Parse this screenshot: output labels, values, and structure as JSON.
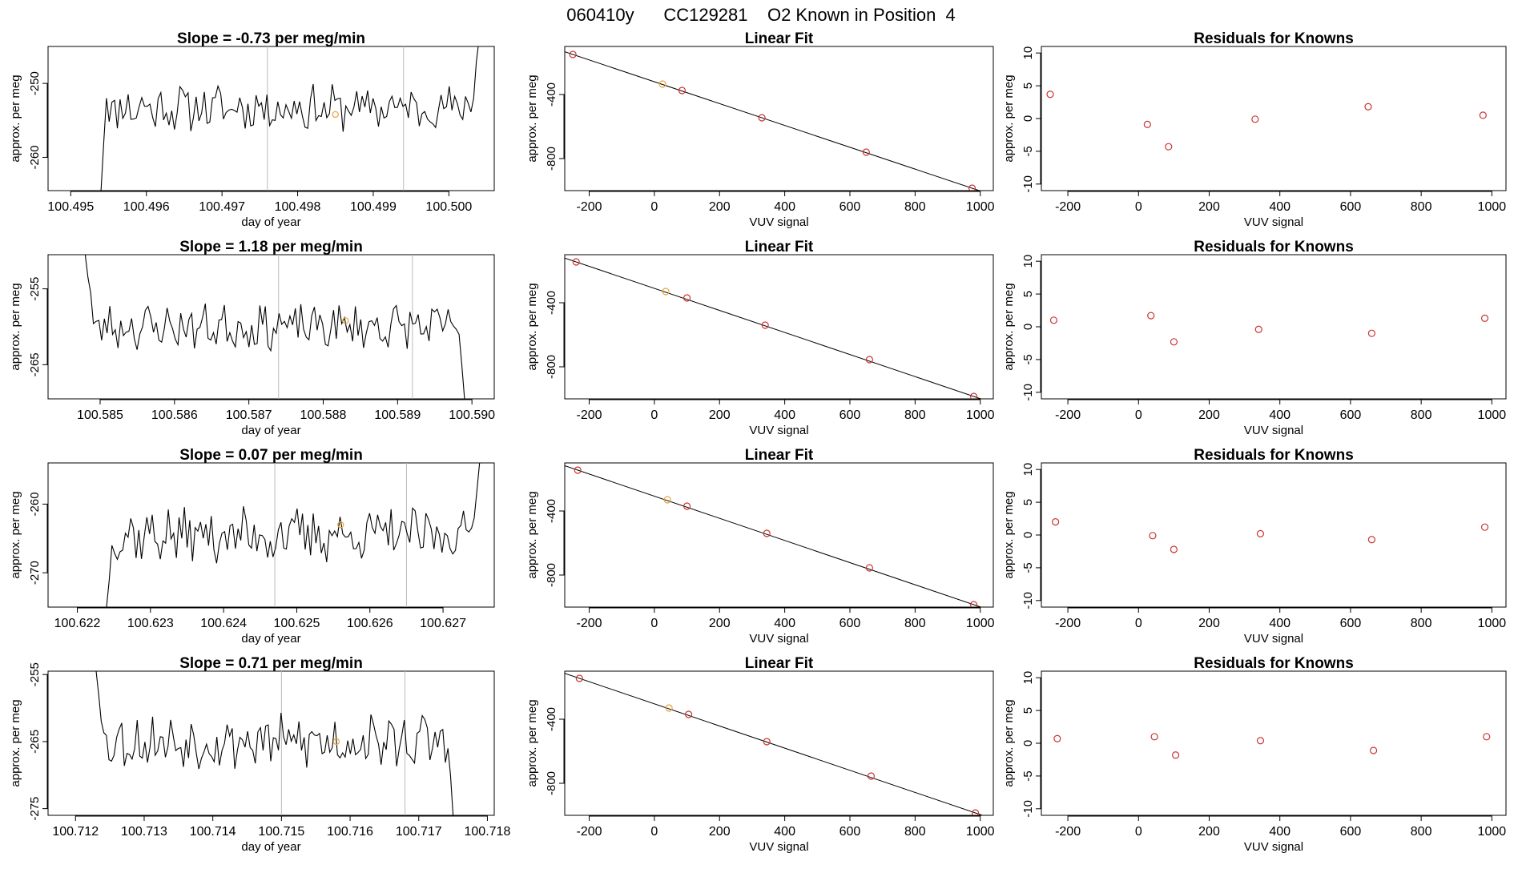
{
  "page_title": "060410y      CC129281    O2 Known in Position  4",
  "colors": {
    "trace": "#000000",
    "orange_point": "#e8a33d",
    "red_point": "#cc3333",
    "vline": "#bbbbbb"
  },
  "chart_data": [
    {
      "type": "line",
      "row": 1,
      "title": "Slope =  -0.73  per meg/min",
      "xlabel": "day of year",
      "ylabel": "approx. per meg",
      "xlim": [
        100.4947,
        100.5006
      ],
      "ylim": [
        -264.5,
        -245
      ],
      "xticks": [
        "100.495",
        "100.496",
        "100.497",
        "100.498",
        "100.499",
        "100.500"
      ],
      "xtick_values": [
        100.495,
        100.496,
        100.497,
        100.498,
        100.499,
        100.5
      ],
      "yticks": [
        "-250",
        "-260"
      ],
      "ytick_values": [
        -250,
        -260
      ],
      "trace_start": 100.4954,
      "trace_end": 100.5004,
      "trace_level": -253.3,
      "trace_amplitude": 2.0,
      "start_values": [
        -264.5,
        -258,
        -252
      ],
      "end_values": [
        -252,
        -247,
        -244
      ],
      "vlines": [
        100.4976,
        100.4994
      ],
      "marker": {
        "x": 100.4985,
        "y": -254.2
      },
      "seed": 11
    },
    {
      "type": "scatter",
      "row": 1,
      "title": "Linear Fit",
      "xlabel": "VUV signal",
      "ylabel": "approx. per meg",
      "xlim": [
        -275,
        1040
      ],
      "ylim": [
        -1000,
        -100
      ],
      "xticks": [
        "-200",
        "0",
        "200",
        "400",
        "600",
        "800",
        "1000"
      ],
      "xtick_values": [
        -200,
        0,
        200,
        400,
        600,
        800,
        1000
      ],
      "yticks": [
        "-400",
        "-800"
      ],
      "ytick_values": [
        -400,
        -800
      ],
      "line": [
        [
          -250,
          -150
        ],
        [
          975,
          -985
        ]
      ],
      "points": [
        {
          "x": -250,
          "y": -150,
          "color": "red"
        },
        {
          "x": 25,
          "y": -335,
          "color": "orange"
        },
        {
          "x": 85,
          "y": -375,
          "color": "red"
        },
        {
          "x": 330,
          "y": -545,
          "color": "red"
        },
        {
          "x": 650,
          "y": -760,
          "color": "red"
        },
        {
          "x": 975,
          "y": -985,
          "color": "red"
        }
      ]
    },
    {
      "type": "scatter",
      "row": 1,
      "title": "Residuals for Knowns",
      "xlabel": "VUV signal",
      "ylabel": "approx. per meg",
      "xlim": [
        -275,
        1040
      ],
      "ylim": [
        -11,
        11
      ],
      "xticks": [
        "-200",
        "0",
        "200",
        "400",
        "600",
        "800",
        "1000"
      ],
      "xtick_values": [
        -200,
        0,
        200,
        400,
        600,
        800,
        1000
      ],
      "yticks": [
        "10",
        "5",
        "0",
        "-5",
        "-10"
      ],
      "ytick_values": [
        10,
        5,
        0,
        -5,
        -10
      ],
      "points": [
        {
          "x": -250,
          "y": 3.7,
          "color": "red"
        },
        {
          "x": 25,
          "y": -0.9,
          "color": "red"
        },
        {
          "x": 85,
          "y": -4.3,
          "color": "red"
        },
        {
          "x": 330,
          "y": -0.1,
          "color": "red"
        },
        {
          "x": 650,
          "y": 1.8,
          "color": "red"
        },
        {
          "x": 975,
          "y": 0.5,
          "color": "red"
        }
      ]
    },
    {
      "type": "line",
      "row": 2,
      "title": "Slope =  1.18  per meg/min",
      "xlabel": "day of year",
      "ylabel": "approx. per meg",
      "xlim": [
        100.5843,
        100.5903
      ],
      "ylim": [
        -269.5,
        -250.5
      ],
      "xticks": [
        "100.585",
        "100.586",
        "100.587",
        "100.588",
        "100.589",
        "100.590"
      ],
      "xtick_values": [
        100.585,
        100.586,
        100.587,
        100.588,
        100.589,
        100.59
      ],
      "yticks": [
        "-255",
        "-265"
      ],
      "ytick_values": [
        -255,
        -265
      ],
      "trace_start": 100.5848,
      "trace_end": 100.5899,
      "trace_level": -260.0,
      "trace_amplitude": 1.9,
      "start_values": [
        -250.5,
        -253.5,
        -255.5
      ],
      "end_values": [
        -261,
        -265,
        -269.5
      ],
      "vlines": [
        100.5874,
        100.5892
      ],
      "marker": {
        "x": 100.5883,
        "y": -259.2
      },
      "seed": 23
    },
    {
      "type": "scatter",
      "row": 2,
      "title": "Linear Fit",
      "xlabel": "VUV signal",
      "ylabel": "approx. per meg",
      "xlim": [
        -275,
        1040
      ],
      "ylim": [
        -1000,
        -100
      ],
      "xticks": [
        "-200",
        "0",
        "200",
        "400",
        "600",
        "800",
        "1000"
      ],
      "xtick_values": [
        -200,
        0,
        200,
        400,
        600,
        800,
        1000
      ],
      "yticks": [
        "-400",
        "-800"
      ],
      "ytick_values": [
        -400,
        -800
      ],
      "line": [
        [
          -240,
          -145
        ],
        [
          980,
          -985
        ]
      ],
      "points": [
        {
          "x": -240,
          "y": -145,
          "color": "red"
        },
        {
          "x": 35,
          "y": -330,
          "color": "orange"
        },
        {
          "x": 100,
          "y": -370,
          "color": "red"
        },
        {
          "x": 340,
          "y": -540,
          "color": "red"
        },
        {
          "x": 660,
          "y": -755,
          "color": "red"
        },
        {
          "x": 980,
          "y": -985,
          "color": "red"
        }
      ]
    },
    {
      "type": "scatter",
      "row": 2,
      "title": "Residuals for Knowns",
      "xlabel": "VUV signal",
      "ylabel": "approx. per meg",
      "xlim": [
        -275,
        1040
      ],
      "ylim": [
        -11,
        11
      ],
      "xticks": [
        "-200",
        "0",
        "200",
        "400",
        "600",
        "800",
        "1000"
      ],
      "xtick_values": [
        -200,
        0,
        200,
        400,
        600,
        800,
        1000
      ],
      "yticks": [
        "10",
        "5",
        "0",
        "-5",
        "-10"
      ],
      "ytick_values": [
        10,
        5,
        0,
        -5,
        -10
      ],
      "points": [
        {
          "x": -240,
          "y": 1.0,
          "color": "red"
        },
        {
          "x": 35,
          "y": 1.7,
          "color": "red"
        },
        {
          "x": 100,
          "y": -2.3,
          "color": "red"
        },
        {
          "x": 340,
          "y": -0.4,
          "color": "red"
        },
        {
          "x": 660,
          "y": -1.0,
          "color": "red"
        },
        {
          "x": 980,
          "y": 1.3,
          "color": "red"
        }
      ]
    },
    {
      "type": "line",
      "row": 3,
      "title": "Slope =  0.07  per meg/min",
      "xlabel": "day of year",
      "ylabel": "approx. per meg",
      "xlim": [
        100.6216,
        100.6277
      ],
      "ylim": [
        -275,
        -254
      ],
      "xticks": [
        "100.622",
        "100.623",
        "100.624",
        "100.625",
        "100.626",
        "100.627"
      ],
      "xtick_values": [
        100.622,
        100.623,
        100.624,
        100.625,
        100.626,
        100.627
      ],
      "yticks": [
        "-260",
        "-270"
      ],
      "ytick_values": [
        -260,
        -270
      ],
      "trace_start": 100.6224,
      "trace_end": 100.6275,
      "trace_level": -264.5,
      "trace_amplitude": 2.6,
      "start_values": [
        -275,
        -271,
        -266
      ],
      "end_values": [
        -262,
        -258,
        -254
      ],
      "vlines": [
        100.6247,
        100.6265
      ],
      "marker": {
        "x": 100.6256,
        "y": -263.0
      },
      "seed": 37
    },
    {
      "type": "scatter",
      "row": 3,
      "title": "Linear Fit",
      "xlabel": "VUV signal",
      "ylabel": "approx. per meg",
      "xlim": [
        -275,
        1040
      ],
      "ylim": [
        -1000,
        -100
      ],
      "xticks": [
        "-200",
        "0",
        "200",
        "400",
        "600",
        "800",
        "1000"
      ],
      "xtick_values": [
        -200,
        0,
        200,
        400,
        600,
        800,
        1000
      ],
      "yticks": [
        "-400",
        "-800"
      ],
      "ytick_values": [
        -400,
        -800
      ],
      "line": [
        [
          -235,
          -145
        ],
        [
          980,
          -985
        ]
      ],
      "points": [
        {
          "x": -235,
          "y": -145,
          "color": "red"
        },
        {
          "x": 40,
          "y": -330,
          "color": "orange"
        },
        {
          "x": 100,
          "y": -370,
          "color": "red"
        },
        {
          "x": 345,
          "y": -540,
          "color": "red"
        },
        {
          "x": 660,
          "y": -755,
          "color": "red"
        },
        {
          "x": 980,
          "y": -985,
          "color": "red"
        }
      ]
    },
    {
      "type": "scatter",
      "row": 3,
      "title": "Residuals for Knowns",
      "xlabel": "VUV signal",
      "ylabel": "approx. per meg",
      "xlim": [
        -275,
        1040
      ],
      "ylim": [
        -11,
        11
      ],
      "xticks": [
        "-200",
        "0",
        "200",
        "400",
        "600",
        "800",
        "1000"
      ],
      "xtick_values": [
        -200,
        0,
        200,
        400,
        600,
        800,
        1000
      ],
      "yticks": [
        "10",
        "5",
        "0",
        "-5",
        "-10"
      ],
      "ytick_values": [
        10,
        5,
        0,
        -5,
        -10
      ],
      "points": [
        {
          "x": -235,
          "y": 2.0,
          "color": "red"
        },
        {
          "x": 40,
          "y": -0.1,
          "color": "red"
        },
        {
          "x": 100,
          "y": -2.2,
          "color": "red"
        },
        {
          "x": 345,
          "y": 0.2,
          "color": "red"
        },
        {
          "x": 660,
          "y": -0.7,
          "color": "red"
        },
        {
          "x": 980,
          "y": 1.2,
          "color": "red"
        }
      ]
    },
    {
      "type": "line",
      "row": 4,
      "title": "Slope =  0.71  per meg/min",
      "xlabel": "day of year",
      "ylabel": "approx. per meg",
      "xlim": [
        100.7116,
        100.7181
      ],
      "ylim": [
        -276,
        -254.5
      ],
      "xticks": [
        "100.712",
        "100.713",
        "100.714",
        "100.715",
        "100.716",
        "100.717",
        "100.718"
      ],
      "xtick_values": [
        100.712,
        100.713,
        100.714,
        100.715,
        100.716,
        100.717,
        100.718
      ],
      "yticks": [
        "-255",
        "-265",
        "-275"
      ],
      "ytick_values": [
        -255,
        -265,
        -275
      ],
      "trace_start": 100.7123,
      "trace_end": 100.7175,
      "trace_level": -265.0,
      "trace_amplitude": 2.6,
      "start_values": [
        -254.5,
        -258,
        -262
      ],
      "end_values": [
        -266,
        -270,
        -276
      ],
      "vlines": [
        100.715,
        100.7168
      ],
      "marker": {
        "x": 100.7158,
        "y": -265.0
      },
      "seed": 53
    },
    {
      "type": "scatter",
      "row": 4,
      "title": "Linear Fit",
      "xlabel": "VUV signal",
      "ylabel": "approx. per meg",
      "xlim": [
        -275,
        1040
      ],
      "ylim": [
        -1000,
        -100
      ],
      "xticks": [
        "-200",
        "0",
        "200",
        "400",
        "600",
        "800",
        "1000"
      ],
      "xtick_values": [
        -200,
        0,
        200,
        400,
        600,
        800,
        1000
      ],
      "yticks": [
        "-400",
        "-800"
      ],
      "ytick_values": [
        -400,
        -800
      ],
      "line": [
        [
          -230,
          -145
        ],
        [
          985,
          -985
        ]
      ],
      "points": [
        {
          "x": -230,
          "y": -145,
          "color": "red"
        },
        {
          "x": 45,
          "y": -330,
          "color": "orange"
        },
        {
          "x": 105,
          "y": -370,
          "color": "red"
        },
        {
          "x": 345,
          "y": -540,
          "color": "red"
        },
        {
          "x": 665,
          "y": -755,
          "color": "red"
        },
        {
          "x": 985,
          "y": -985,
          "color": "red"
        }
      ]
    },
    {
      "type": "scatter",
      "row": 4,
      "title": "Residuals for Knowns",
      "xlabel": "VUV signal",
      "ylabel": "approx. per meg",
      "xlim": [
        -275,
        1040
      ],
      "ylim": [
        -11,
        11
      ],
      "xticks": [
        "-200",
        "0",
        "200",
        "400",
        "600",
        "800",
        "1000"
      ],
      "xtick_values": [
        -200,
        0,
        200,
        400,
        600,
        800,
        1000
      ],
      "yticks": [
        "10",
        "5",
        "0",
        "-5",
        "-10"
      ],
      "ytick_values": [
        10,
        5,
        0,
        -5,
        -10
      ],
      "points": [
        {
          "x": -230,
          "y": 0.7,
          "color": "red"
        },
        {
          "x": 45,
          "y": 1.0,
          "color": "red"
        },
        {
          "x": 105,
          "y": -1.8,
          "color": "red"
        },
        {
          "x": 345,
          "y": 0.4,
          "color": "red"
        },
        {
          "x": 665,
          "y": -1.1,
          "color": "red"
        },
        {
          "x": 985,
          "y": 1.0,
          "color": "red"
        }
      ]
    }
  ]
}
